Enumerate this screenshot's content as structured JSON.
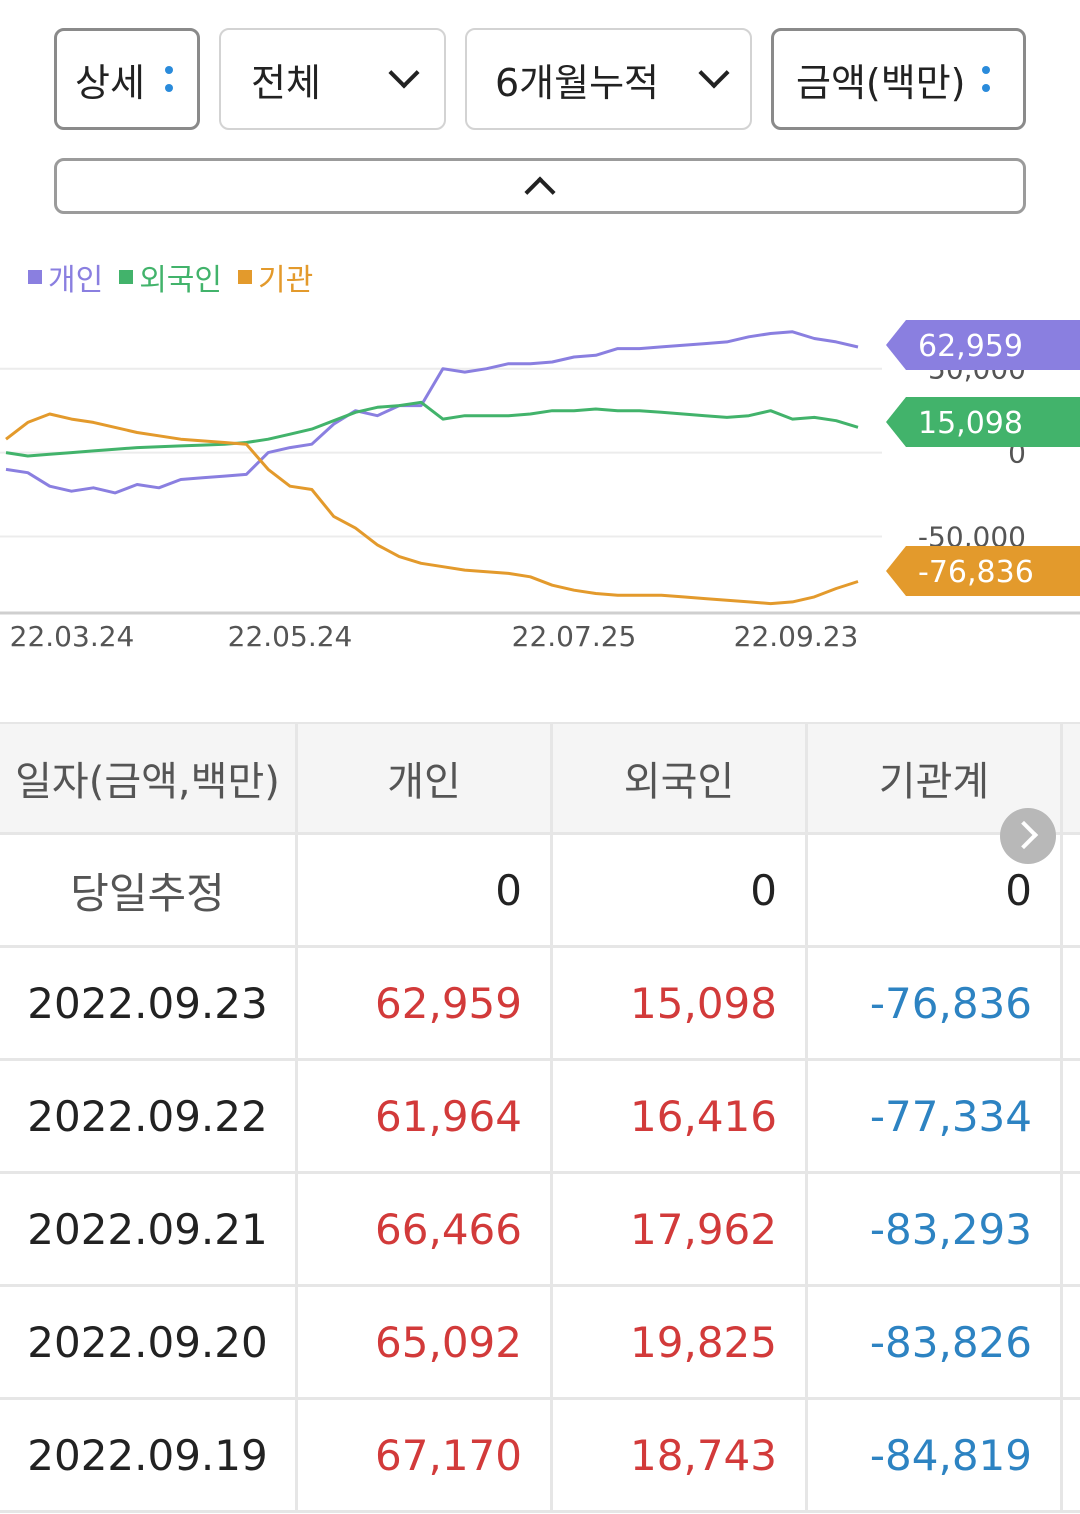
{
  "filters": {
    "view": "상세",
    "scope": "전체",
    "period": "6개월누적",
    "unit": "금액(백만)"
  },
  "legend": [
    {
      "name": "개인",
      "color": "#8a7fe0"
    },
    {
      "name": "외국인",
      "color": "#42b36b"
    },
    {
      "name": "기관",
      "color": "#e39a2c"
    }
  ],
  "chart_data": {
    "type": "line",
    "x_labels": [
      "22.03.24",
      "22.05.24",
      "22.07.25",
      "22.09.23"
    ],
    "y_ticks": [
      "50,000",
      "0",
      "-50,000"
    ],
    "series": [
      {
        "name": "개인",
        "color": "#8a7fe0",
        "last": "62,959",
        "values": [
          -10000,
          -12000,
          -20000,
          -23000,
          -21000,
          -24000,
          -19000,
          -21000,
          -16000,
          -15000,
          -14000,
          -13000,
          0,
          3000,
          5000,
          17000,
          25000,
          22000,
          28000,
          28000,
          50000,
          48000,
          50000,
          53000,
          53000,
          54000,
          57000,
          58000,
          62000,
          62000,
          63000,
          64000,
          65000,
          66000,
          69000,
          71000,
          72000,
          68000,
          66000,
          62959
        ]
      },
      {
        "name": "외국인",
        "color": "#42b36b",
        "last": "15,098",
        "values": [
          0,
          -2000,
          -1000,
          0,
          1000,
          2000,
          3000,
          3500,
          4000,
          4500,
          5000,
          6000,
          8000,
          11000,
          14000,
          19000,
          24000,
          27000,
          28000,
          30000,
          20000,
          22000,
          22000,
          22000,
          23000,
          25000,
          25000,
          26000,
          25000,
          25000,
          24000,
          23000,
          22000,
          21000,
          22000,
          25000,
          20000,
          21000,
          19000,
          15098
        ]
      },
      {
        "name": "기관",
        "color": "#e39a2c",
        "last": "-76,836",
        "values": [
          8000,
          18000,
          23000,
          20000,
          18000,
          15000,
          12000,
          10000,
          8000,
          7000,
          6000,
          5000,
          -10000,
          -20000,
          -22000,
          -38000,
          -45000,
          -55000,
          -62000,
          -66000,
          -68000,
          -70000,
          -71000,
          -72000,
          -74000,
          -79000,
          -82000,
          -84000,
          -85000,
          -85000,
          -85000,
          -86000,
          -87000,
          -88000,
          -89000,
          -90000,
          -89000,
          -86000,
          -81000,
          -76836
        ]
      }
    ],
    "ylim": [
      -95000,
      85000
    ]
  },
  "table": {
    "headers": [
      "일자(금액,백만)",
      "개인",
      "외국인",
      "기관계"
    ],
    "estimate": {
      "label": "당일추정",
      "values": [
        "0",
        "0",
        "0"
      ]
    },
    "rows": [
      {
        "date": "2022.09.23",
        "individual": "62,959",
        "foreign": "15,098",
        "institution": "-76,836"
      },
      {
        "date": "2022.09.22",
        "individual": "61,964",
        "foreign": "16,416",
        "institution": "-77,334"
      },
      {
        "date": "2022.09.21",
        "individual": "66,466",
        "foreign": "17,962",
        "institution": "-83,293"
      },
      {
        "date": "2022.09.20",
        "individual": "65,092",
        "foreign": "19,825",
        "institution": "-83,826"
      },
      {
        "date": "2022.09.19",
        "individual": "67,170",
        "foreign": "18,743",
        "institution": "-84,819"
      }
    ]
  }
}
